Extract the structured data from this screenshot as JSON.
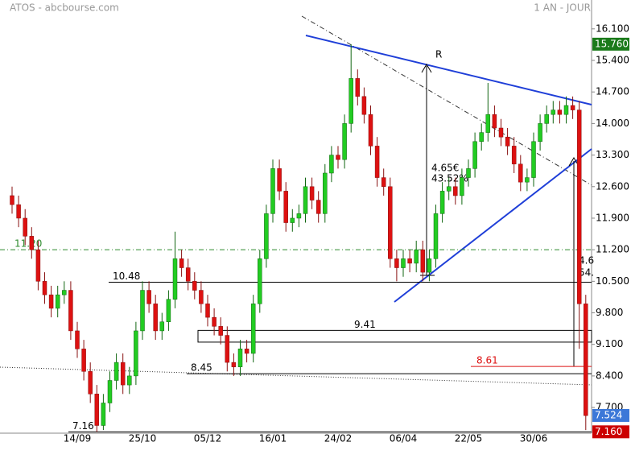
{
  "chart_data": {
    "type": "candlestick",
    "title": "ATOS - abcbourse.com",
    "subtitle": "1 AN - JOUR",
    "categories": [
      null,
      null,
      null,
      null,
      null,
      null,
      null,
      null,
      null,
      null,
      "14/09",
      null,
      null,
      null,
      null,
      null,
      null,
      null,
      null,
      null,
      "25/10",
      null,
      null,
      null,
      null,
      null,
      null,
      null,
      null,
      null,
      "05/12",
      null,
      null,
      null,
      null,
      null,
      null,
      null,
      null,
      null,
      "16/01",
      null,
      null,
      null,
      null,
      null,
      null,
      null,
      null,
      null,
      "24/02",
      null,
      null,
      null,
      null,
      null,
      null,
      null,
      null,
      null,
      "06/04",
      null,
      null,
      null,
      null,
      null,
      null,
      null,
      null,
      null,
      "22/05",
      null,
      null,
      null,
      null,
      null,
      null,
      null,
      null,
      null,
      "30/06",
      null,
      null,
      null,
      null,
      null,
      null,
      null,
      null
    ],
    "open": [
      12.4,
      12.2,
      11.9,
      11.5,
      11.2,
      10.5,
      10.2,
      9.9,
      10.2,
      10.3,
      9.4,
      9.0,
      8.5,
      8.0,
      7.3,
      7.8,
      8.3,
      8.7,
      8.2,
      8.4,
      9.4,
      10.3,
      10.0,
      9.4,
      9.6,
      10.1,
      11.0,
      10.8,
      10.5,
      10.3,
      10.0,
      9.7,
      9.5,
      9.3,
      8.7,
      8.6,
      9.0,
      8.9,
      10.0,
      11.0,
      12.0,
      13.0,
      12.5,
      11.8,
      11.9,
      12.0,
      12.6,
      12.3,
      12.0,
      12.9,
      13.3,
      13.2,
      14.0,
      15.0,
      14.6,
      14.2,
      13.5,
      12.8,
      12.6,
      11.0,
      10.8,
      11.0,
      10.9,
      11.2,
      10.7,
      11.0,
      12.0,
      12.5,
      12.6,
      12.4,
      12.8,
      13.0,
      13.6,
      13.8,
      14.2,
      13.9,
      13.7,
      13.5,
      13.1,
      12.7,
      12.8,
      13.6,
      14.0,
      14.2,
      14.3,
      14.2,
      14.4,
      14.3,
      10.0
    ],
    "high": [
      12.6,
      12.4,
      12.1,
      11.7,
      11.4,
      10.7,
      10.4,
      10.4,
      10.5,
      10.5,
      9.6,
      9.2,
      8.7,
      8.2,
      8.0,
      8.5,
      8.9,
      8.9,
      8.6,
      9.6,
      10.5,
      10.5,
      10.2,
      9.8,
      10.3,
      11.6,
      11.2,
      11.0,
      10.7,
      10.5,
      10.2,
      9.9,
      9.7,
      9.5,
      8.9,
      9.2,
      9.2,
      10.2,
      11.2,
      12.2,
      13.2,
      13.2,
      12.7,
      12.1,
      12.2,
      12.8,
      12.8,
      12.5,
      13.1,
      13.5,
      13.5,
      14.2,
      15.76,
      15.2,
      14.8,
      14.4,
      13.7,
      13.0,
      12.8,
      11.2,
      11.2,
      11.2,
      11.4,
      11.4,
      11.2,
      12.2,
      12.7,
      12.8,
      12.8,
      13.0,
      13.2,
      13.8,
      14.0,
      14.9,
      14.4,
      14.1,
      13.9,
      13.7,
      13.3,
      13.0,
      13.8,
      14.2,
      14.4,
      14.5,
      14.5,
      14.6,
      14.6,
      14.5,
      10.2
    ],
    "low": [
      12.0,
      11.7,
      11.3,
      11.0,
      10.3,
      10.0,
      9.7,
      9.7,
      10.0,
      9.2,
      8.8,
      8.3,
      7.8,
      7.16,
      7.2,
      7.6,
      8.1,
      8.0,
      8.0,
      8.2,
      9.2,
      9.8,
      9.2,
      9.2,
      9.4,
      9.9,
      10.6,
      10.3,
      10.1,
      9.8,
      9.5,
      9.3,
      9.1,
      8.5,
      8.4,
      8.4,
      8.7,
      8.7,
      9.8,
      10.8,
      11.8,
      12.3,
      11.6,
      11.6,
      11.7,
      11.8,
      12.1,
      11.8,
      11.8,
      12.7,
      13.0,
      13.0,
      13.8,
      14.4,
      14.0,
      13.3,
      12.6,
      12.4,
      10.8,
      10.5,
      10.6,
      10.7,
      10.7,
      10.5,
      10.5,
      10.8,
      11.8,
      12.3,
      12.2,
      12.2,
      12.6,
      12.8,
      13.4,
      13.6,
      13.7,
      13.5,
      13.3,
      12.9,
      12.5,
      12.5,
      12.6,
      13.4,
      13.8,
      14.0,
      14.0,
      14.0,
      14.1,
      9.0,
      7.2
    ],
    "close": [
      12.2,
      11.9,
      11.5,
      11.2,
      10.5,
      10.2,
      9.9,
      10.2,
      10.3,
      9.4,
      9.0,
      8.5,
      8.0,
      7.3,
      7.8,
      8.3,
      8.7,
      8.2,
      8.4,
      9.4,
      10.3,
      10.0,
      9.4,
      9.6,
      10.1,
      11.0,
      10.8,
      10.5,
      10.3,
      10.0,
      9.7,
      9.5,
      9.3,
      8.7,
      8.6,
      9.0,
      8.9,
      10.0,
      11.0,
      12.0,
      13.0,
      12.5,
      11.8,
      11.9,
      12.0,
      12.6,
      12.3,
      12.0,
      12.9,
      13.3,
      13.2,
      14.0,
      15.0,
      14.6,
      14.2,
      13.5,
      12.8,
      12.6,
      11.0,
      10.8,
      11.0,
      10.9,
      11.2,
      10.7,
      11.0,
      12.0,
      12.5,
      12.6,
      12.4,
      12.8,
      13.0,
      13.6,
      13.8,
      14.2,
      13.9,
      13.7,
      13.5,
      13.1,
      12.7,
      12.8,
      13.6,
      14.0,
      14.2,
      14.3,
      14.2,
      14.4,
      14.3,
      10.0,
      7.52
    ],
    "up_color": "#22cc22",
    "down_color": "#dd1111",
    "ylim": [
      7.13,
      16.74
    ],
    "yticks": [
      {
        "value": 7.7,
        "label": "7.700"
      },
      {
        "value": 8.4,
        "label": "8.400"
      },
      {
        "value": 9.1,
        "label": "9.100"
      },
      {
        "value": 9.8,
        "label": "9.800"
      },
      {
        "value": 10.5,
        "label": "10.500"
      },
      {
        "value": 11.2,
        "label": "11.200"
      },
      {
        "value": 11.9,
        "label": "11.900"
      },
      {
        "value": 12.6,
        "label": "12.600"
      },
      {
        "value": 13.3,
        "label": "13.300"
      },
      {
        "value": 14.0,
        "label": "14.000"
      },
      {
        "value": 14.7,
        "label": "14.700"
      },
      {
        "value": 15.4,
        "label": "15.400"
      },
      {
        "value": 16.1,
        "label": "16.100"
      }
    ],
    "levels": [
      {
        "value": 11.2,
        "label": "11.20",
        "color": "#2e8b2e"
      },
      {
        "value": 10.48,
        "color": "#000000"
      },
      {
        "value": 8.45,
        "color": "#000000"
      },
      {
        "value": 7.16,
        "color": "#000000"
      },
      {
        "value": 8.61,
        "color": "#dd1111"
      }
    ],
    "range_box": {
      "top": 9.41,
      "bottom": 9.15
    },
    "price_tags": [
      {
        "value": 15.76,
        "label": "15.760",
        "color": "#1a7a1a"
      },
      {
        "value": 7.524,
        "label": "7.524",
        "color": "#3c78d8"
      },
      {
        "value": 7.16,
        "label": "7.160",
        "color": "#cc0000"
      }
    ],
    "annotations": [
      "R",
      "4.65€",
      "43.52%",
      "4.6",
      "54."
    ]
  }
}
